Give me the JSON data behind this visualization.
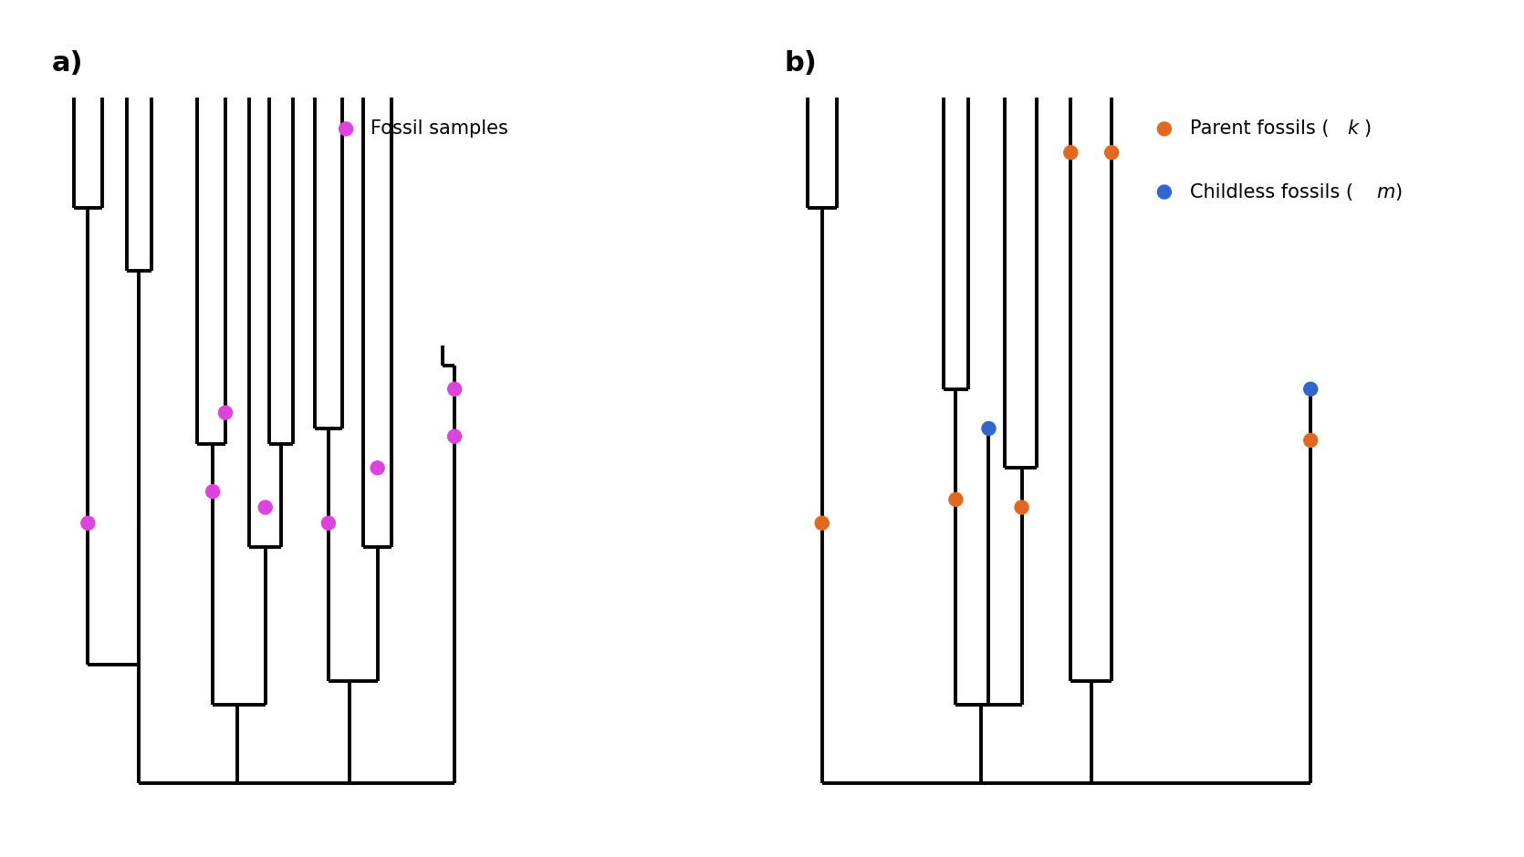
{
  "fig_width": 16.7,
  "fig_height": 9.4,
  "background_color": "#ffffff",
  "line_color": "#000000",
  "line_width": 2.8,
  "fossil_color_a": "#dd44dd",
  "fossil_color_parent": "#e06820",
  "fossil_color_childless": "#3366cc",
  "dot_size": 140,
  "label_a": "a)",
  "label_b": "b)",
  "legend_a_label": "Fossil samples",
  "legend_b_label1": "Parent fossils (",
  "legend_b_italic1": "k",
  "legend_b_label1_end": ")",
  "legend_b_label2": "Childless fossils (",
  "legend_b_italic2": "m",
  "legend_b_label2_end": ")"
}
